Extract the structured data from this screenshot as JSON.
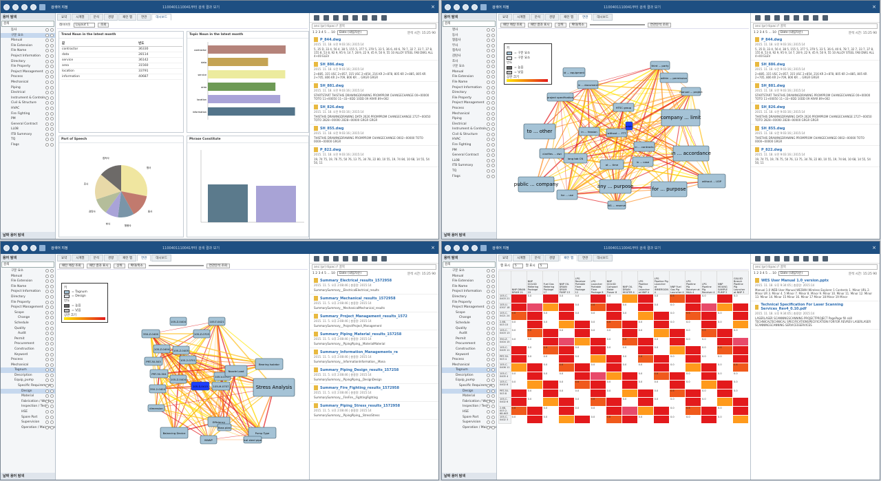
{
  "app": {
    "title": "검색어 지정",
    "url_window": "1100401110041부터 검색 결과 보기",
    "search_label": "고급 검색",
    "close": "×"
  },
  "left": {
    "header": "용어 탐색",
    "bottom": "날짜 용어 탐색",
    "search": "검색",
    "items1": [
      "동사",
      "구문 요소",
      "Manual",
      "File Extension",
      "File Name",
      "Project Information",
      "Directory",
      "File Property",
      "Project Management",
      "Process",
      "Mechanical",
      "Piping",
      "Electrical",
      "Instrument & Controls",
      "Civil & Structure",
      "HVAC",
      "Fire Fighting",
      "PM",
      "General Contract",
      "LL08",
      "ITB Summary",
      "TQ",
      "Flags"
    ],
    "items2": [
      "명사",
      "동사",
      "형용사",
      "부사",
      "접속사",
      "감탄사",
      "조사",
      "구문 요소",
      "Manual",
      "File Extension",
      "File Name",
      "Project Information",
      "Directory",
      "File Property",
      "Project Management",
      "Process",
      "Mechanical",
      "Piping",
      "Electrical",
      "Instrument & Controls",
      "Civil & Structure",
      "HVAC",
      "Fire Fighting",
      "PM",
      "General Contract",
      "LL08",
      "ITB Summary",
      "TQ",
      "Flags"
    ],
    "items3": [
      "구문 요소",
      "Manual",
      "File Extension",
      "File Name",
      "Project Information",
      "Directory",
      "File Property",
      "Project Management",
      "Scope",
      "Change",
      "Schedule",
      "Quality",
      "Audit",
      "Permit",
      "Procurement",
      "Construction",
      "Keyword",
      "Process",
      "Mechanical",
      "Tagnum",
      "Description",
      "Equip_pump",
      "Specific Requirement",
      "Design",
      "Material",
      "Fabrication / Welding",
      "Inspection / Test",
      "HSE",
      "Spare Part",
      "Supervision",
      "Operation / Maintenance"
    ],
    "items4": [
      "구문 요소",
      "Manual",
      "File Extension",
      "File Name",
      "Project Information",
      "Directory",
      "File Property",
      "Project Management",
      "Scope",
      "Change",
      "Schedule",
      "Quality",
      "Audit",
      "Permit",
      "Procurement",
      "Construction",
      "Keyword",
      "Process",
      "Mechanical",
      "Tagnum",
      "Description",
      "Equip_pump",
      "Specific Requirement",
      "Design",
      "Material",
      "Fabrication / Welding",
      "Inspection / Test",
      "HSE",
      "Spare Part",
      "Supervision",
      "Operation / Maintenance"
    ]
  },
  "tabs": [
    "요약",
    "시계열",
    "분석",
    "경향",
    "패턴 맵",
    "연관",
    "대시보드"
  ],
  "q1": {
    "layout_label": "레이아웃",
    "layout_value": "Layout 1",
    "btn": "조회",
    "trend_title": "Trend Noun in the latest month",
    "trend_cols": [
      "값",
      "빈도"
    ],
    "trend_rows": [
      [
        "contractor",
        "36330"
      ],
      [
        "data",
        "28114"
      ],
      [
        "service",
        "36142"
      ],
      [
        "area",
        "31560"
      ],
      [
        "location",
        "33791"
      ],
      [
        "information",
        "40687"
      ]
    ],
    "topic_title": "Topic Noun in the latest month",
    "pos_title": "Part of Speech",
    "const_title": "Phrase Constitute",
    "pos_labels": [
      "명사",
      "동사",
      "형용사",
      "부사",
      "감탄사",
      "조사",
      "접속사"
    ]
  },
  "q2": {
    "toolbar": [
      "패턴 매칭 조회",
      "패턴 결과 표시",
      "상위",
      "확대/축소",
      "연관분석 조회"
    ],
    "legend_title": "키",
    "legend_items": [
      "= 구문 요소",
      "= 구문 요소"
    ],
    "freq_title": "빈도",
    "freq_items": [
      "= 높음",
      "= 낮음"
    ],
    "rel_title": "상관 크기",
    "nodes": [
      "id ... equipment",
      "in ... document",
      "third ... party",
      "within ... permission",
      "manual ... project",
      "project specification",
      "to ... other",
      "company ... limit",
      "in ... accordance",
      "public ... company",
      "for ... use",
      "any ... purpose",
      "for ... purpose",
      "without ... UOP",
      "at ... time",
      "in ... case",
      "in ... contracts",
      "HTSC group",
      "without ... FTT",
      "long tab CN",
      "clarifies ... dwi",
      "NG ... reserve",
      "in ... feasion",
      "arbitr"
    ]
  },
  "q3": {
    "toolbar": [
      "패턴 매칭 조회",
      "패턴 결과 표시",
      "상위",
      "확대/축소",
      "연관분석 조회"
    ],
    "legend_title": "키",
    "legend_items": [
      "= Tagnum",
      "= Design"
    ],
    "freq_title": "빈도",
    "freq_items": [
      "= 높음",
      "= 낮음"
    ],
    "rel_title": "상관 크기",
    "nodes": [
      "105-Z-0404",
      "105-T-0421",
      "350-Z-0400",
      "105-Z-0703",
      "105-Z-0404",
      "105-Z-0405",
      "PRT-30-503",
      "105-2-0701",
      "PRT-30-504",
      "105-Z-0404",
      "105-V-0707",
      "350-2-0404",
      "105-S-0415",
      "105-M-0707",
      "Nozzle Load",
      "Bearing Isolator",
      "Stress Analysis",
      "Efficiency",
      "Balancing Device",
      "Pump Type",
      "MAWP",
      "Boss plan",
      "lcal steel pipe",
      "dimension"
    ]
  },
  "q4": {
    "cols": [
      "NNP DRAIN DRUM 21",
      "NNP G0/LSD Metering Package 19",
      "Fuel Gas Metering Package 17",
      "NNP OIL DRAIN DRUM PUMP 13",
      "LPG Receiver Portable Flare Package 12",
      "LPG Launcher Portable Flare Package 8",
      "NNP G0/LSD Compact Meter Prover 8",
      "NNP OIL DRAIN HEATER 4",
      "LPG Pipeline Pig Launcher at NNP 4",
      "LPG Pipeline Pig Launcher at IMMERSION 4",
      "NNP Fuel Gas Pig Launcher 4",
      "LPG Pipeline Pig Receiver at MAA 4",
      "LPG Pipeline Pig Receiver 4",
      "NNP MOUNG SAMPLE PUMP 3",
      "G0/LSD Branch Pipeline Pig Launcher at NNP 3"
    ],
    "rows": [
      "105-C-0403 21",
      "105-U-0307 18",
      "105-C-0421 24",
      "2-68-003 15",
      "105-C-0403 13",
      "350-Z-0404 15",
      "105-C-0405 11",
      "PRT-30-503 4",
      "105-C-0406 11",
      "105-C-0405 4",
      "105-C-0402 8",
      "PRT-30-503 8",
      "105-C-0402 6",
      "2-68-003 2-68-603",
      "105-C-0402 3"
    ]
  },
  "right": {
    "query": "anc:(pr):tipac:/! 골목",
    "pages": "1 2 3 4 5 ... 10",
    "sort": "Date (내림차순)",
    "time": "분석 시간:",
    "time_val": "15:25 90",
    "results": "총 문서 결과: 11 15.0 1000",
    "docs1": [
      {
        "title": "P_844.dwg",
        "meta": "2015. 11. 18. 오전 9:03:16 | 2015:14",
        "text": "5, 35 D, 33 4, 56 4, 38 5, 155 5, 377 5, 379 5, 33 5, 36 6, 40 6, 78 7, 32 7, 33 7, 37 8, 155 8, 53 8, 92 9, 95 9, 14 7, 28 9, 22 9, 45 9, 50 9, 55 10 ALLOY STEEL FAB DWG ALL 4+00 ELEV"
      },
      {
        "title": "SH_886.dwg",
        "meta": "2015. 11. 18. 오전 9:03:16 | 2015:14",
        "text": "2+885, 315 USC 2+857, 315 USC 2+854, 216 KR 2+878, 805 KR 2+885, 805 KR 2+705, 806 KR 2+709, 806 KR ... GRGR GRGR"
      },
      {
        "title": "SH_881.dwg",
        "meta": "2015. 11. 18. 오전 9:03:16 | 2015:14",
        "text": "STARTSTART THISTHIS DRAWINGDRAWING PROMPROM CHANGECHANGE 00+00000 TOTO 11+00050 11~33~0DD 10DD 09 ARAR 89+002"
      },
      {
        "title": "SH_826.dwg",
        "meta": "2015. 11. 18. 오전 9:03:16 | 2015:14",
        "text": "THISTHIS DRAWINGDRAWING DATA 2626 PROMPROM CHANGECHANGE 2727~00050 TOTO 2828~00000 2828~00000 GRGR GRGR"
      },
      {
        "title": "SH_855.dwg",
        "meta": "2015. 11. 18. 오전 9:03:16 | 2015:14",
        "text": "THISTHIS DRAWINGDRAWING PROMPROM CHANGECHANGE 0002~00000 TOTO 0000~00000 GRGR"
      },
      {
        "title": "P_822.dwg",
        "meta": "2015. 11. 18. 오전 9:03:16 | 2015:14",
        "text": "19, 74 75, 19, 76 75, 50 76, 13 75, 34 78, 22 80, 10 55, 19, 74 84, 10 68, 14 55, 54 50, 11"
      }
    ],
    "docs3": [
      {
        "title": "Summary_Electrical_results_1572958",
        "meta": "2015. 11. 5. 오후 2:08:46 | 총용량: 2015:14",
        "text": "SummarySummary__ElectricalElectrical_results"
      },
      {
        "title": "Summary_Mechanical_results_1572958",
        "meta": "2015. 11. 5. 오후 2:08:46 | 총용량: 2015:14",
        "text": "SummarySummary__MechanicalMechanical_results"
      },
      {
        "title": "Summary_Project_Management_results_1572",
        "meta": "2015. 11. 5. 오후 2:08:46 | 총용량: 2015:14",
        "text": "SummarySummary__ProjectProject_Management"
      },
      {
        "title": "Summary_Piping_Material_results_157258",
        "meta": "2015. 11. 5. 오후 2:08:46 | 총용량: 2015:14",
        "text": "SummarySummary__PipingPiping__MaterialMaterial"
      },
      {
        "title": "Summary_Information_Managements_re",
        "meta": "2015. 11. 5. 오후 2:08:46 | 총용량: 2015:14",
        "text": "SummarySummary__InformationInformation__Mana"
      },
      {
        "title": "Summary_Piping_Design_results_157258",
        "meta": "2015. 11. 5. 오후 2:08:46 | 총용량: 2015:14",
        "text": "SummarySummary__PipingPiping__DesignDesign"
      },
      {
        "title": "Summary_Fire_Fighting_results_1572958",
        "meta": "2015. 11. 5. 오후 2:08:46 | 총용량: 2015:14",
        "text": "SummarySummary__FireFire__FightingFighting"
      },
      {
        "title": "Summary_Piping_Stress_results_1572958",
        "meta": "2015. 11. 5. 오후 2:08:46 | 총용량: 2015:14",
        "text": "SummarySummary__PipingPiping__StressStress"
      }
    ],
    "docs4": [
      {
        "title": "WES User Manual 1.0_version.pptx",
        "meta": "2015. 11. 18. 오후 9:34:05 | 총용량: 2015:14",
        "text": "Manual 1.0 WEB User Manual WESWH Wireless Explorer 1 Contents 1. Minor URL 2. Minor UR 3. Minor 4. 5 Minor 7. Minor 8. Minor 9. Minor 10. Minor 11. Minor 12. Minor 13. Minor 14. Minor 15 Minor 16. Minor 17 Minor 18 Minor 19 Minor"
      },
      {
        "title": "Technical Specification For Laser Scanning Services_Rev4_0.10.pdf",
        "meta": "2015. 11. 18. 오후 9:34:05 | 총용량: 2015:14",
        "text": "LASERLASER SCANNINGSCANNING PROJECTPROJECT PagePage fill skill TECHNICALTECHNICAL SPECIFICATIONSPECIFICATION FORFOR REVREV LASERLASER SCANNINGSCANNING SERVICESSERVICES"
      }
    ]
  }
}
